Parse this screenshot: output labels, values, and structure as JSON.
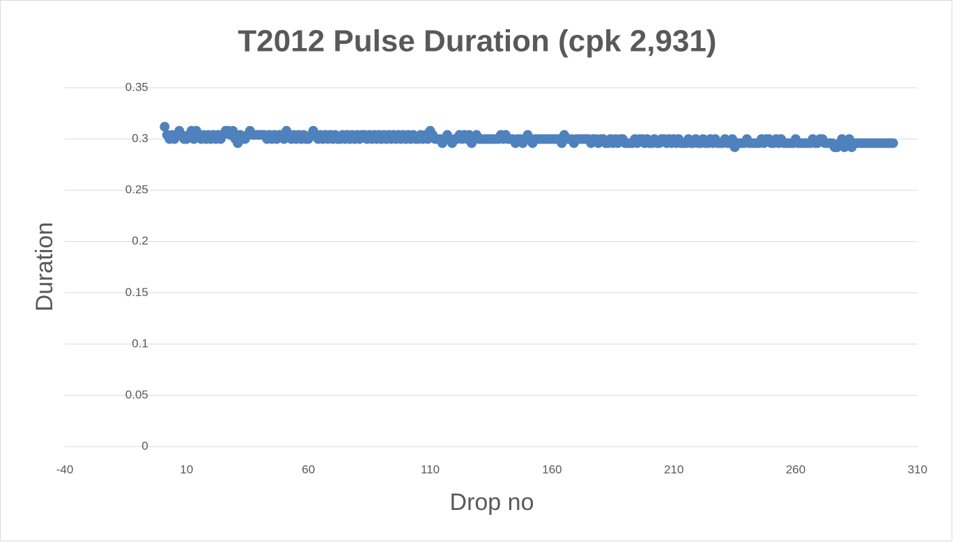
{
  "chart_data": {
    "type": "scatter",
    "title": "T2012 Pulse Duration (cpk 2,931)",
    "x_label": "Drop no",
    "y_label": "Duration",
    "xlim": [
      -40,
      310
    ],
    "xticks": [
      -40,
      10,
      60,
      110,
      160,
      210,
      260,
      310
    ],
    "ylim": [
      0,
      0.35
    ],
    "yticks": [
      0,
      0.05,
      0.1,
      0.15,
      0.2,
      0.25,
      0.3,
      0.35
    ],
    "grid": true,
    "series": [
      {
        "name": "Duration",
        "color": "#4f81bd",
        "x": [
          1,
          2,
          3,
          4,
          5,
          6,
          7,
          8,
          9,
          10,
          11,
          12,
          13,
          14,
          15,
          16,
          17,
          18,
          19,
          20,
          21,
          22,
          23,
          24,
          25,
          26,
          27,
          28,
          29,
          30,
          31,
          32,
          33,
          34,
          35,
          36,
          37,
          38,
          39,
          40,
          41,
          42,
          43,
          44,
          45,
          46,
          47,
          48,
          49,
          50,
          51,
          52,
          53,
          54,
          55,
          56,
          57,
          58,
          59,
          60,
          61,
          62,
          63,
          64,
          65,
          66,
          67,
          68,
          69,
          70,
          71,
          72,
          73,
          74,
          75,
          76,
          77,
          78,
          79,
          80,
          81,
          82,
          83,
          84,
          85,
          86,
          87,
          88,
          89,
          90,
          91,
          92,
          93,
          94,
          95,
          96,
          97,
          98,
          99,
          100,
          101,
          102,
          103,
          104,
          105,
          106,
          107,
          108,
          109,
          110,
          111,
          112,
          113,
          114,
          115,
          116,
          117,
          118,
          119,
          120,
          121,
          122,
          123,
          124,
          125,
          126,
          127,
          128,
          129,
          130,
          131,
          132,
          133,
          134,
          135,
          136,
          137,
          138,
          139,
          140,
          141,
          142,
          143,
          144,
          145,
          146,
          147,
          148,
          149,
          150,
          151,
          152,
          153,
          154,
          155,
          156,
          157,
          158,
          159,
          160,
          161,
          162,
          163,
          164,
          165,
          166,
          167,
          168,
          169,
          170,
          171,
          172,
          173,
          174,
          175,
          176,
          177,
          178,
          179,
          180,
          181,
          182,
          183,
          184,
          185,
          186,
          187,
          188,
          189,
          190,
          191,
          192,
          193,
          194,
          195,
          196,
          197,
          198,
          199,
          200,
          201,
          202,
          203,
          204,
          205,
          206,
          207,
          208,
          209,
          210,
          211,
          212,
          213,
          214,
          215,
          216,
          217,
          218,
          219,
          220,
          221,
          222,
          223,
          224,
          225,
          226,
          227,
          228,
          229,
          230,
          231,
          232,
          233,
          234,
          235,
          236,
          237,
          238,
          239,
          240,
          241,
          242,
          243,
          244,
          245,
          246,
          247,
          248,
          249,
          250,
          251,
          252,
          253,
          254,
          255,
          256,
          257,
          258,
          259,
          260,
          261,
          262,
          263,
          264,
          265,
          266,
          267,
          268,
          269,
          270,
          271,
          272,
          273,
          274,
          275,
          276,
          277,
          278,
          279,
          280,
          281,
          282,
          283,
          284,
          285,
          286,
          287,
          288,
          289,
          290,
          291,
          292,
          293,
          294,
          295,
          296,
          297,
          298,
          299,
          300
        ],
        "values": [
          0.312,
          0.304,
          0.3,
          0.304,
          0.3,
          0.304,
          0.308,
          0.304,
          0.3,
          0.3,
          0.304,
          0.308,
          0.3,
          0.308,
          0.304,
          0.3,
          0.304,
          0.3,
          0.304,
          0.3,
          0.304,
          0.3,
          0.304,
          0.3,
          0.304,
          0.308,
          0.308,
          0.304,
          0.308,
          0.3,
          0.296,
          0.304,
          0.3,
          0.3,
          0.304,
          0.308,
          0.304,
          0.304,
          0.304,
          0.304,
          0.304,
          0.304,
          0.3,
          0.304,
          0.3,
          0.304,
          0.3,
          0.304,
          0.304,
          0.3,
          0.308,
          0.304,
          0.3,
          0.304,
          0.3,
          0.304,
          0.3,
          0.304,
          0.3,
          0.3,
          0.304,
          0.308,
          0.304,
          0.3,
          0.304,
          0.3,
          0.304,
          0.3,
          0.304,
          0.3,
          0.304,
          0.3,
          0.3,
          0.304,
          0.3,
          0.304,
          0.3,
          0.304,
          0.3,
          0.304,
          0.3,
          0.304,
          0.304,
          0.3,
          0.304,
          0.3,
          0.304,
          0.3,
          0.304,
          0.3,
          0.304,
          0.3,
          0.304,
          0.3,
          0.304,
          0.3,
          0.304,
          0.3,
          0.304,
          0.3,
          0.304,
          0.3,
          0.304,
          0.3,
          0.3,
          0.304,
          0.3,
          0.304,
          0.3,
          0.308,
          0.304,
          0.3,
          0.3,
          0.3,
          0.296,
          0.3,
          0.304,
          0.3,
          0.296,
          0.3,
          0.3,
          0.304,
          0.3,
          0.304,
          0.3,
          0.304,
          0.296,
          0.3,
          0.304,
          0.3,
          0.3,
          0.3,
          0.3,
          0.3,
          0.3,
          0.3,
          0.3,
          0.3,
          0.304,
          0.3,
          0.304,
          0.3,
          0.3,
          0.3,
          0.296,
          0.3,
          0.3,
          0.296,
          0.3,
          0.304,
          0.3,
          0.296,
          0.3,
          0.3,
          0.3,
          0.3,
          0.3,
          0.3,
          0.3,
          0.3,
          0.3,
          0.3,
          0.3,
          0.296,
          0.304,
          0.3,
          0.3,
          0.3,
          0.296,
          0.3,
          0.3,
          0.3,
          0.3,
          0.3,
          0.3,
          0.296,
          0.3,
          0.3,
          0.296,
          0.3,
          0.3,
          0.296,
          0.296,
          0.3,
          0.296,
          0.3,
          0.296,
          0.3,
          0.3,
          0.296,
          0.296,
          0.296,
          0.296,
          0.3,
          0.296,
          0.3,
          0.3,
          0.296,
          0.3,
          0.296,
          0.296,
          0.3,
          0.296,
          0.296,
          0.3,
          0.3,
          0.296,
          0.3,
          0.296,
          0.3,
          0.296,
          0.3,
          0.296,
          0.296,
          0.296,
          0.3,
          0.296,
          0.296,
          0.3,
          0.296,
          0.296,
          0.3,
          0.296,
          0.296,
          0.3,
          0.296,
          0.3,
          0.296,
          0.296,
          0.296,
          0.3,
          0.296,
          0.296,
          0.3,
          0.292,
          0.296,
          0.296,
          0.296,
          0.296,
          0.3,
          0.296,
          0.296,
          0.296,
          0.296,
          0.296,
          0.3,
          0.296,
          0.3,
          0.3,
          0.296,
          0.296,
          0.3,
          0.296,
          0.3,
          0.296,
          0.296,
          0.296,
          0.296,
          0.296,
          0.3,
          0.296,
          0.296,
          0.296,
          0.296,
          0.296,
          0.296,
          0.3,
          0.296,
          0.296,
          0.3,
          0.3,
          0.296,
          0.296,
          0.296,
          0.296,
          0.292,
          0.292,
          0.296,
          0.3,
          0.292,
          0.296,
          0.3,
          0.292,
          0.296,
          0.296,
          0.296,
          0.296,
          0.296,
          0.296,
          0.296,
          0.296,
          0.296,
          0.296,
          0.296,
          0.296,
          0.296,
          0.296,
          0.296,
          0.296,
          0.296
        ]
      }
    ]
  }
}
